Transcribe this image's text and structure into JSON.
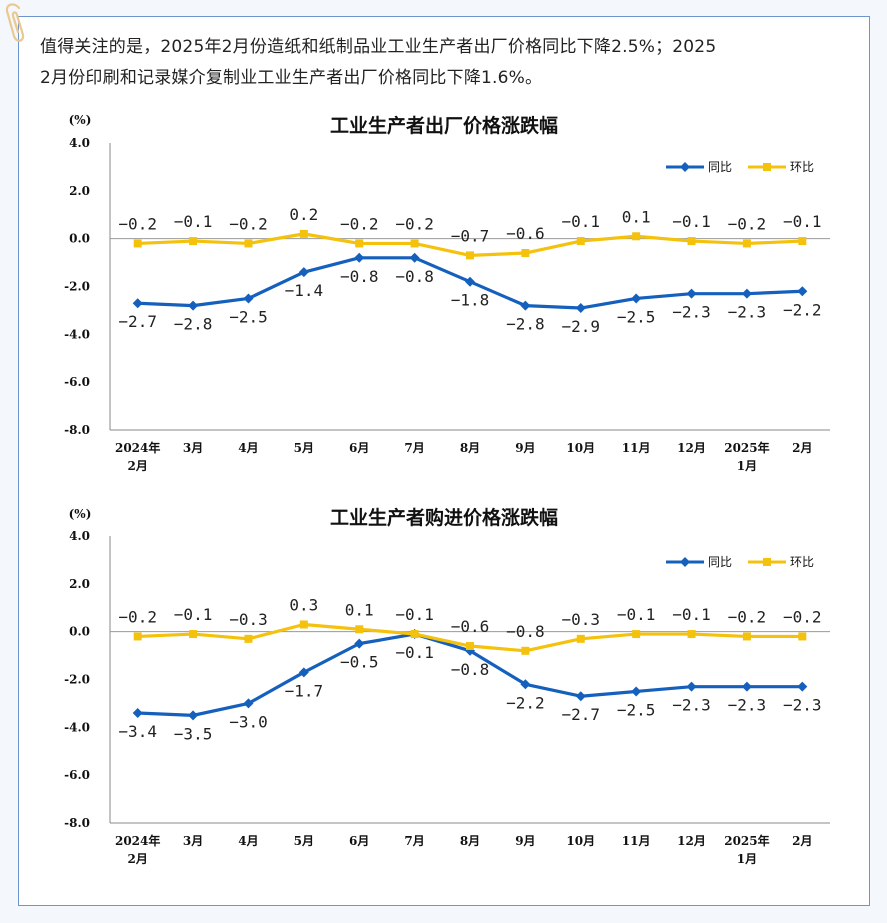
{
  "intro": {
    "line1": "值得关注的是，2025年2月份造纸和纸制品业工业生产者出厂价格同比下降2.5%；2025",
    "line2": "2月份印刷和记录媒介复制业工业生产者出厂价格同比下降1.6%。"
  },
  "colors": {
    "yoy": "#1560bd",
    "mom": "#f4c20d",
    "axis": "#888888",
    "border": "#6f95cf"
  },
  "chart_data": [
    {
      "type": "line",
      "title": "工业生产者出厂价格涨跌幅",
      "yunit": "(%)",
      "ylim": [
        -8,
        4
      ],
      "yticks": [
        "4.0",
        "2.0",
        "0.0",
        "-2.0",
        "-4.0",
        "-6.0",
        "-8.0"
      ],
      "categories": [
        [
          "2024年",
          "2月"
        ],
        [
          "3月"
        ],
        [
          "4月"
        ],
        [
          "5月"
        ],
        [
          "6月"
        ],
        [
          "7月"
        ],
        [
          "8月"
        ],
        [
          "9月"
        ],
        [
          "10月"
        ],
        [
          "11月"
        ],
        [
          "12月"
        ],
        [
          "2025年",
          "1月"
        ],
        [
          "2月"
        ]
      ],
      "legend_position": "top-right",
      "series": [
        {
          "name": "同比",
          "marker": "diamond",
          "values": [
            -2.7,
            -2.8,
            -2.5,
            -1.4,
            -0.8,
            -0.8,
            -1.8,
            -2.8,
            -2.9,
            -2.5,
            -2.3,
            -2.3,
            -2.2
          ],
          "labels": [
            "-2.7",
            "-2.8",
            "-2.5",
            "-1.4",
            "-0.8",
            "-0.8",
            "-1.8",
            "-2.8",
            "-2.9",
            "-2.5",
            "-2.3",
            "-2.3",
            "-2.2"
          ]
        },
        {
          "name": "环比",
          "marker": "square",
          "values": [
            -0.2,
            -0.1,
            -0.2,
            0.2,
            -0.2,
            -0.2,
            -0.7,
            -0.6,
            -0.1,
            0.1,
            -0.1,
            -0.2,
            -0.1
          ],
          "labels": [
            "-0.2",
            "-0.1",
            "-0.2",
            "0.2",
            "-0.2",
            "-0.2",
            "-0.7",
            "-0.6",
            "-0.1",
            "0.1",
            "-0.1",
            "-0.2",
            "-0.1"
          ]
        }
      ]
    },
    {
      "type": "line",
      "title": "工业生产者购进价格涨跌幅",
      "yunit": "(%)",
      "ylim": [
        -8,
        4
      ],
      "yticks": [
        "4.0",
        "2.0",
        "0.0",
        "-2.0",
        "-4.0",
        "-6.0",
        "-8.0"
      ],
      "categories": [
        [
          "2024年",
          "2月"
        ],
        [
          "3月"
        ],
        [
          "4月"
        ],
        [
          "5月"
        ],
        [
          "6月"
        ],
        [
          "7月"
        ],
        [
          "8月"
        ],
        [
          "9月"
        ],
        [
          "10月"
        ],
        [
          "11月"
        ],
        [
          "12月"
        ],
        [
          "2025年",
          "1月"
        ],
        [
          "2月"
        ]
      ],
      "legend_position": "top-right",
      "series": [
        {
          "name": "同比",
          "marker": "diamond",
          "values": [
            -3.4,
            -3.5,
            -3.0,
            -1.7,
            -0.5,
            -0.1,
            -0.8,
            -2.2,
            -2.7,
            -2.5,
            -2.3,
            -2.3,
            -2.3
          ],
          "labels": [
            "-3.4",
            "-3.5",
            "-3.0",
            "-1.7",
            "-0.5",
            "-0.1",
            "-0.8",
            "-2.2",
            "-2.7",
            "-2.5",
            "-2.3",
            "-2.3",
            "-2.3"
          ]
        },
        {
          "name": "环比",
          "marker": "square",
          "values": [
            -0.2,
            -0.1,
            -0.3,
            0.3,
            0.1,
            -0.1,
            -0.6,
            -0.8,
            -0.3,
            -0.1,
            -0.1,
            -0.2,
            -0.2
          ],
          "labels": [
            "-0.2",
            "-0.1",
            "-0.3",
            "0.3",
            "0.1",
            "-0.1",
            "-0.6",
            "-0.8",
            "-0.3",
            "-0.1",
            "-0.1",
            "-0.2",
            "-0.2"
          ]
        }
      ]
    }
  ]
}
